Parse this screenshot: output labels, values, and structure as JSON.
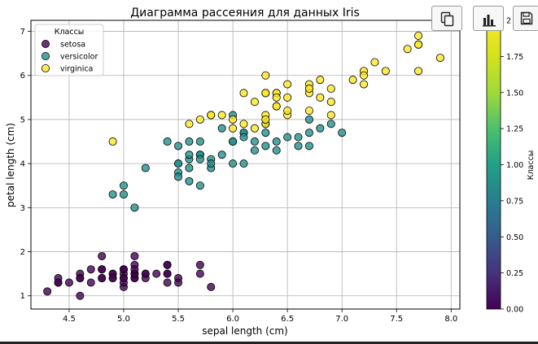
{
  "toolbar": {
    "buttons": [
      {
        "name": "copy-button",
        "icon": "copy-icon"
      },
      {
        "name": "chart-button",
        "icon": "bar-chart-icon"
      },
      {
        "name": "save-button",
        "icon": "floppy-disk-icon"
      }
    ]
  },
  "chart_data": {
    "type": "scatter",
    "title": "Диаграмма рассеяния для данных Iris",
    "xlabel": "sepal length (cm)",
    "ylabel": "petal length (cm)",
    "xlim": [
      4.15,
      8.08
    ],
    "ylim": [
      0.7,
      7.25
    ],
    "x_ticks": [
      4.5,
      5.0,
      5.5,
      6.0,
      6.5,
      7.0,
      7.5,
      8.0
    ],
    "x_tick_labels": [
      "4.5",
      "5.0",
      "5.5",
      "6.0",
      "6.5",
      "7.0",
      "7.5",
      "8.0"
    ],
    "y_ticks": [
      1,
      2,
      3,
      4,
      5,
      6,
      7
    ],
    "y_tick_labels": [
      "1",
      "2",
      "3",
      "4",
      "5",
      "6",
      "7"
    ],
    "grid": true,
    "legend": {
      "title": "Классы",
      "placement": "top-left",
      "entries": [
        "setosa",
        "versicolor",
        "virginica"
      ]
    },
    "colormap": "viridis",
    "colorbar": {
      "label": "Классы",
      "range": [
        0,
        2
      ],
      "ticks": [
        0.0,
        0.25,
        0.5,
        0.75,
        1.0,
        1.25,
        1.5,
        1.75,
        2.0
      ],
      "tick_labels": [
        "0.00",
        "0.25",
        "0.50",
        "0.75",
        "1.00",
        "1.25",
        "1.50",
        "1.75",
        "2"
      ]
    },
    "series": [
      {
        "name": "setosa",
        "class_value": 0,
        "color": "#440154",
        "x": [
          5.1,
          4.9,
          4.7,
          4.6,
          5.0,
          5.4,
          4.6,
          5.0,
          4.4,
          4.9,
          5.4,
          4.8,
          4.8,
          4.3,
          5.8,
          5.7,
          5.4,
          5.1,
          5.7,
          5.1,
          5.4,
          5.1,
          4.6,
          5.1,
          4.8,
          5.0,
          5.0,
          5.2,
          5.2,
          4.7,
          4.8,
          5.4,
          5.2,
          5.5,
          4.9,
          5.0,
          5.5,
          4.9,
          4.4,
          5.1,
          5.0,
          4.5,
          4.4,
          5.0,
          5.1,
          4.8,
          5.1,
          4.6,
          5.3,
          5.0
        ],
        "y": [
          1.4,
          1.4,
          1.3,
          1.5,
          1.4,
          1.7,
          1.4,
          1.5,
          1.4,
          1.5,
          1.5,
          1.6,
          1.4,
          1.1,
          1.2,
          1.5,
          1.3,
          1.4,
          1.7,
          1.5,
          1.7,
          1.5,
          1.0,
          1.7,
          1.9,
          1.6,
          1.6,
          1.5,
          1.4,
          1.6,
          1.6,
          1.5,
          1.5,
          1.4,
          1.5,
          1.2,
          1.3,
          1.4,
          1.3,
          1.5,
          1.3,
          1.3,
          1.3,
          1.6,
          1.9,
          1.4,
          1.6,
          1.4,
          1.5,
          1.4
        ]
      },
      {
        "name": "versicolor",
        "class_value": 1,
        "color": "#21918c",
        "x": [
          7.0,
          6.4,
          6.9,
          5.5,
          6.5,
          5.7,
          6.3,
          4.9,
          6.6,
          5.2,
          5.0,
          5.9,
          6.0,
          6.1,
          5.6,
          6.7,
          5.6,
          5.8,
          6.2,
          5.6,
          5.9,
          6.1,
          6.3,
          6.1,
          6.4,
          6.6,
          6.8,
          6.7,
          6.0,
          5.7,
          5.5,
          5.5,
          5.8,
          6.0,
          5.4,
          6.0,
          6.7,
          6.3,
          5.6,
          5.5,
          5.5,
          6.1,
          5.8,
          5.0,
          5.6,
          5.7,
          5.7,
          6.2,
          5.1,
          5.7
        ],
        "y": [
          4.7,
          4.5,
          4.9,
          4.0,
          4.6,
          4.5,
          4.7,
          3.3,
          4.6,
          3.9,
          3.5,
          4.2,
          4.0,
          4.7,
          3.6,
          4.4,
          4.5,
          4.1,
          4.5,
          3.9,
          4.8,
          4.0,
          4.9,
          4.7,
          4.3,
          4.4,
          4.8,
          5.0,
          4.5,
          3.5,
          3.8,
          3.7,
          3.9,
          5.1,
          4.5,
          4.5,
          4.7,
          4.4,
          4.1,
          4.0,
          4.4,
          4.6,
          4.0,
          3.3,
          4.2,
          4.2,
          4.2,
          4.3,
          3.0,
          4.1
        ]
      },
      {
        "name": "virginica",
        "class_value": 2,
        "color": "#fde725",
        "x": [
          6.3,
          5.8,
          7.1,
          6.3,
          6.5,
          7.6,
          4.9,
          7.3,
          6.7,
          7.2,
          6.5,
          6.4,
          6.8,
          5.7,
          5.8,
          6.4,
          6.5,
          7.7,
          7.7,
          6.0,
          6.9,
          5.6,
          7.7,
          6.3,
          6.7,
          7.2,
          6.2,
          6.1,
          6.4,
          7.2,
          7.4,
          7.9,
          6.4,
          6.3,
          6.1,
          7.7,
          6.3,
          6.4,
          6.0,
          6.9,
          6.7,
          6.9,
          5.8,
          6.8,
          6.7,
          6.7,
          6.3,
          6.5,
          6.2,
          5.9
        ],
        "y": [
          6.0,
          5.1,
          5.9,
          5.6,
          5.8,
          6.6,
          4.5,
          6.3,
          5.8,
          6.1,
          5.1,
          5.3,
          5.5,
          5.0,
          5.1,
          5.3,
          5.5,
          6.7,
          6.9,
          5.0,
          5.7,
          4.9,
          6.7,
          4.9,
          5.7,
          6.0,
          4.8,
          4.9,
          5.6,
          5.8,
          6.1,
          6.4,
          5.6,
          5.1,
          5.6,
          6.1,
          5.6,
          5.5,
          4.8,
          5.4,
          5.6,
          5.1,
          5.1,
          5.9,
          5.7,
          5.2,
          5.0,
          5.2,
          5.4,
          5.1
        ]
      }
    ]
  }
}
